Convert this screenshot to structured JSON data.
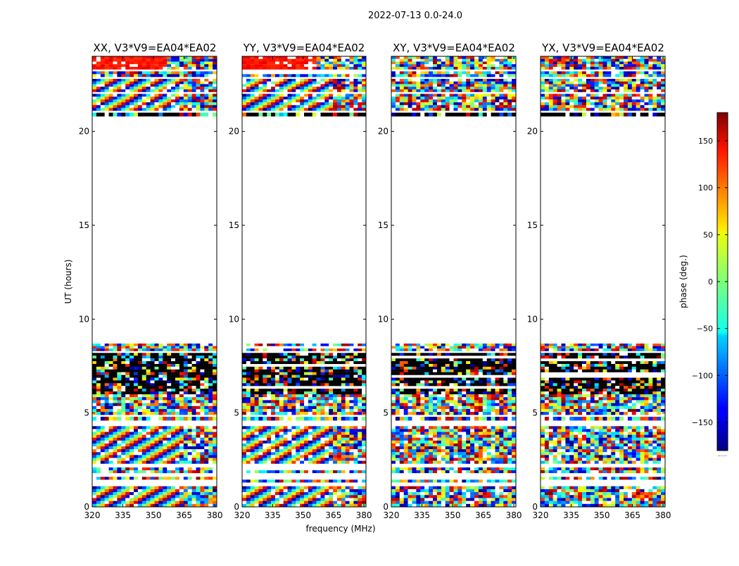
{
  "chart_data": {
    "type": "heatmap",
    "title": "2022-07-13 0.0-24.0",
    "xlabel": "frequency (MHz)",
    "ylabel": "UT (hours)",
    "xlim": [
      320,
      381
    ],
    "ylim": [
      0,
      24
    ],
    "x_ticks": [
      "320",
      "335",
      "350",
      "365",
      "380"
    ],
    "y_ticks": [
      "0",
      "5",
      "10",
      "15",
      "20"
    ],
    "panels": [
      {
        "title": "XX, V3*V9=EA04*EA02",
        "pattern": "fringe"
      },
      {
        "title": "YY, V3*V9=EA04*EA02",
        "pattern": "fringe"
      },
      {
        "title": "XY, V3*V9=EA04*EA02",
        "pattern": "noise"
      },
      {
        "title": "YX, V3*V9=EA04*EA02",
        "pattern": "noise"
      }
    ],
    "data_bands_ut": [
      {
        "from": 0.0,
        "to": 1.1,
        "kind": "fringe"
      },
      {
        "from": 1.3,
        "to": 1.6,
        "kind": "mixed"
      },
      {
        "from": 1.8,
        "to": 2.1,
        "kind": "mixed"
      },
      {
        "from": 2.3,
        "to": 4.3,
        "kind": "fringe"
      },
      {
        "from": 4.6,
        "to": 4.8,
        "kind": "mixed"
      },
      {
        "from": 4.9,
        "to": 6.0,
        "kind": "noise"
      },
      {
        "from": 6.0,
        "to": 8.2,
        "kind": "dark"
      },
      {
        "from": 8.3,
        "to": 8.7,
        "kind": "mixed"
      },
      {
        "from": 20.8,
        "to": 21.0,
        "kind": "dark"
      },
      {
        "from": 21.1,
        "to": 22.0,
        "kind": "fringe"
      },
      {
        "from": 22.1,
        "to": 22.8,
        "kind": "fringe"
      },
      {
        "from": 22.9,
        "to": 23.2,
        "kind": "mixed"
      },
      {
        "from": 23.3,
        "to": 24.0,
        "kind": "top"
      }
    ],
    "colorbar": {
      "label": "phase (deg.)",
      "range": [
        -180,
        180
      ],
      "ticks": [
        "150",
        "100",
        "50",
        "0",
        "−50",
        "−100",
        "−150"
      ],
      "tick_values": [
        150,
        100,
        50,
        0,
        -50,
        -100,
        -150
      ],
      "colormap": "jet",
      "footer": "......"
    }
  }
}
